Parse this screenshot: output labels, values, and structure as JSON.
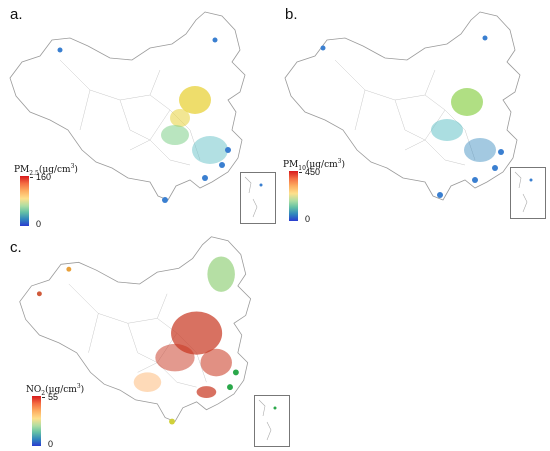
{
  "panels": [
    {
      "label": "a.",
      "legend": {
        "base": "PM",
        "sub": "2.5",
        "unit": "(µg/cm",
        "sup": "3",
        "close": ")",
        "max": "160",
        "min": "0"
      },
      "hotspot_color": "#e8d23a",
      "east_color": "#3a7fd0"
    },
    {
      "label": "b.",
      "legend": {
        "base": "PM",
        "sub": "10",
        "unit": "(µg/cm",
        "sup": "3",
        "close": ")",
        "max": "450",
        "min": "0"
      },
      "hotspot_color": "#8fd14f",
      "east_color": "#3a7fd0"
    },
    {
      "label": "c.",
      "legend": {
        "base": "NO",
        "sub": "2",
        "unit": "(µg/cm",
        "sup": "3",
        "close": ")",
        "max": "55",
        "min": "0"
      },
      "hotspot_color": "#c8341e",
      "east_color": "#2aa84a"
    }
  ]
}
